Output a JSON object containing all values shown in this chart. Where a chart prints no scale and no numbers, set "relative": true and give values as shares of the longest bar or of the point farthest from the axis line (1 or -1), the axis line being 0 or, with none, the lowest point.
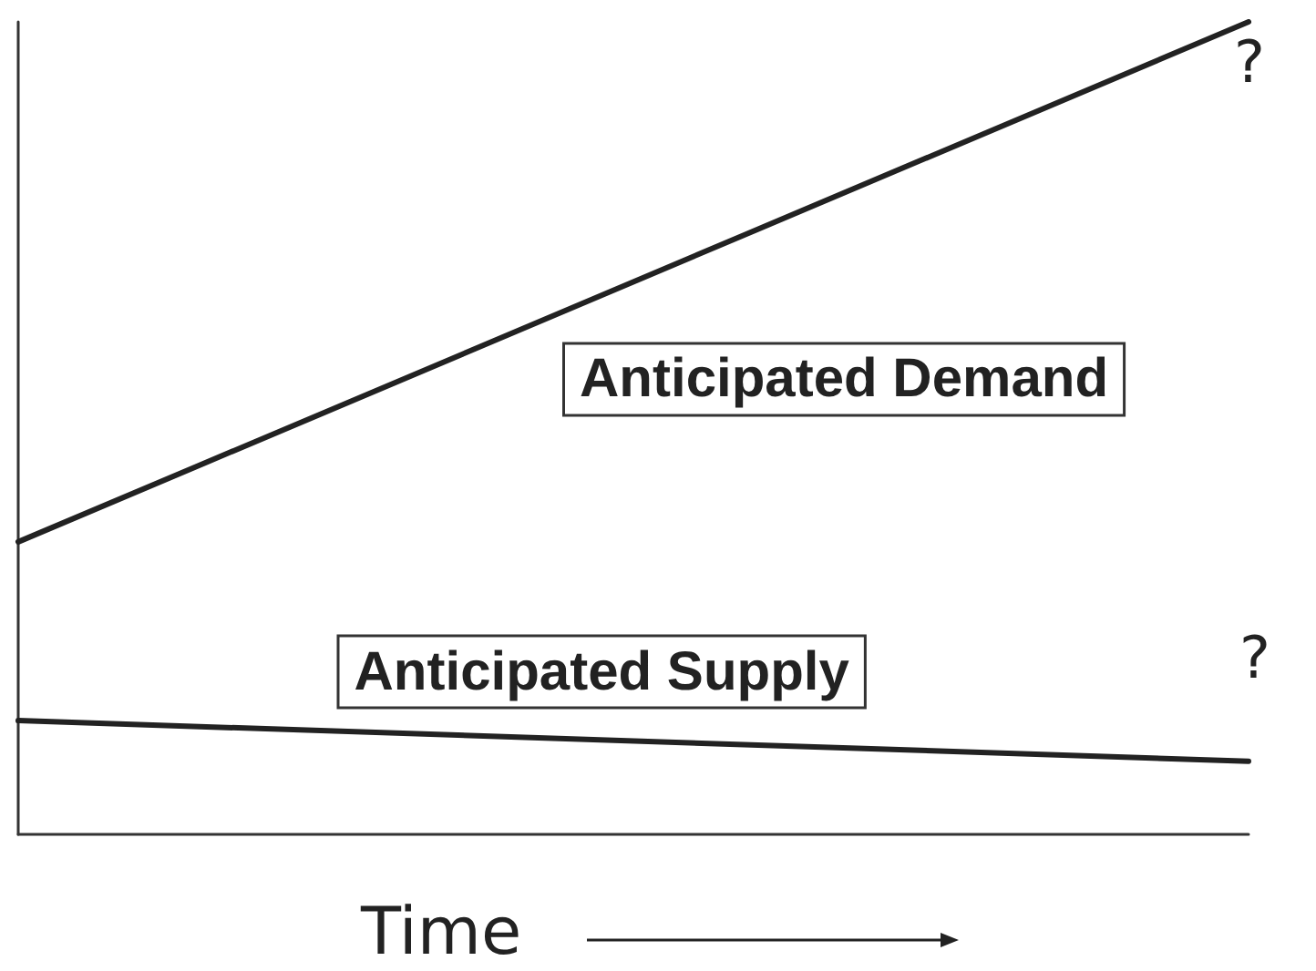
{
  "chart_data": {
    "type": "line",
    "relative": true,
    "categories": [
      null,
      null
    ],
    "xlabel": "Time",
    "series": [
      {
        "name": "Anticipated Demand",
        "color": "#222222",
        "values": [
          0.36,
          1
        ]
      },
      {
        "name": "Anticipated Supply",
        "color": "#222222",
        "values": [
          0.14,
          0.09
        ]
      }
    ],
    "annotations": [
      "?",
      "?"
    ],
    "legend": false,
    "grid": false,
    "marker": "none",
    "line_style": "solid"
  }
}
